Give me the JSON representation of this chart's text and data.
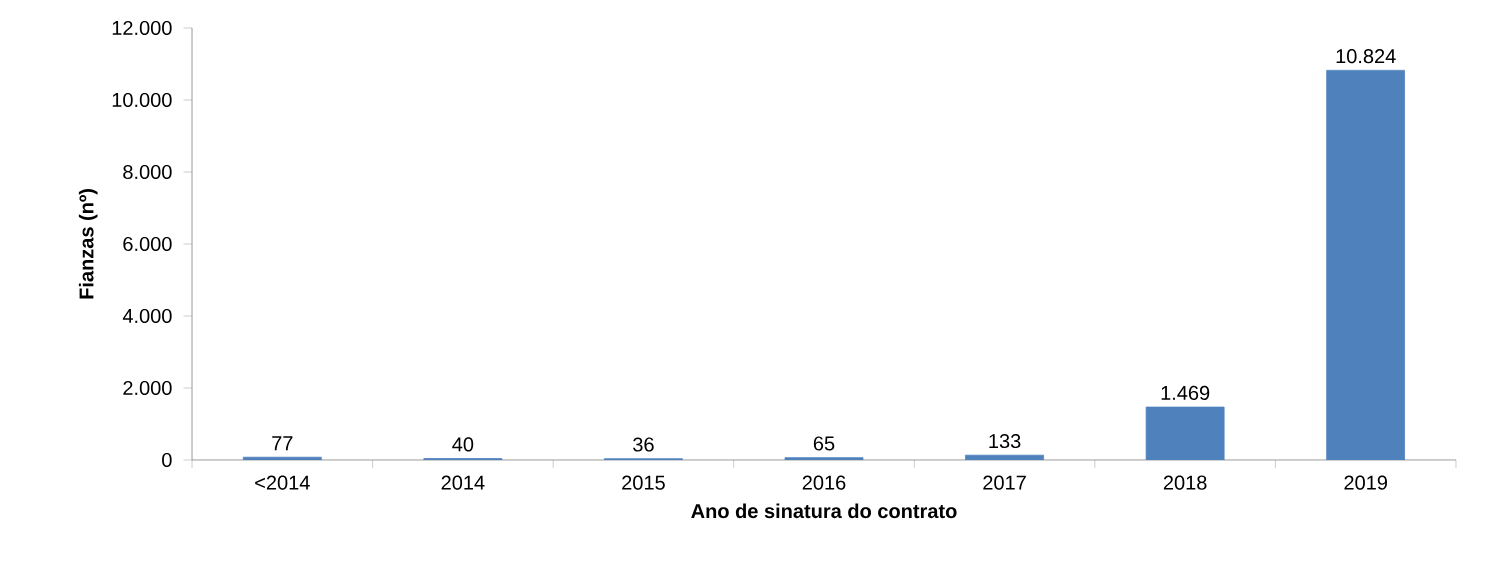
{
  "chart_data": {
    "type": "bar",
    "xlabel": "Ano de sinatura do contrato",
    "ylabel": "Fianzas (nº)",
    "categories": [
      "<2014",
      "2014",
      "2015",
      "2016",
      "2017",
      "2018",
      "2019"
    ],
    "values": [
      77,
      40,
      36,
      65,
      133,
      1469,
      10824
    ],
    "value_labels": [
      "77",
      "40",
      "36",
      "65",
      "133",
      "1.469",
      "10.824"
    ],
    "color": "#4f81bd",
    "ylim": [
      0,
      12000
    ],
    "yticks": [
      0,
      {
        "value": 2000,
        "label": "2.000"
      },
      {
        "value": 4000,
        "label": "4.000"
      },
      {
        "value": 6000,
        "label": "6.000"
      },
      {
        "value": 8000,
        "label": "8.000"
      },
      {
        "value": 10000,
        "label": "10.000"
      },
      {
        "value": 12000,
        "label": "12.000"
      }
    ],
    "line_style": "solid"
  }
}
